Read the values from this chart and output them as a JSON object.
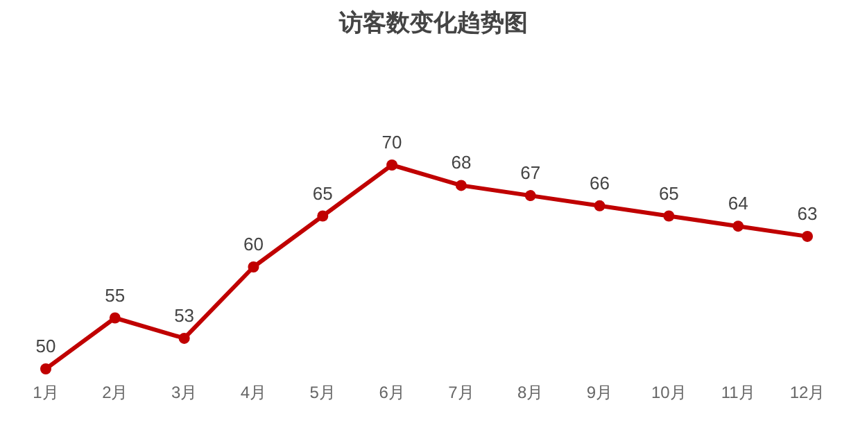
{
  "chart_data": {
    "type": "line",
    "title": "访客数变化趋势图",
    "categories": [
      "1月",
      "2月",
      "3月",
      "4月",
      "5月",
      "6月",
      "7月",
      "8月",
      "9月",
      "10月",
      "11月",
      "12月"
    ],
    "series": [
      {
        "color": "#c00000",
        "values": [
          50,
          55,
          53,
          60,
          65,
          70,
          68,
          67,
          66,
          65,
          64,
          63
        ]
      }
    ],
    "data_labels": true,
    "marker": "circle",
    "line_style": "solid"
  }
}
